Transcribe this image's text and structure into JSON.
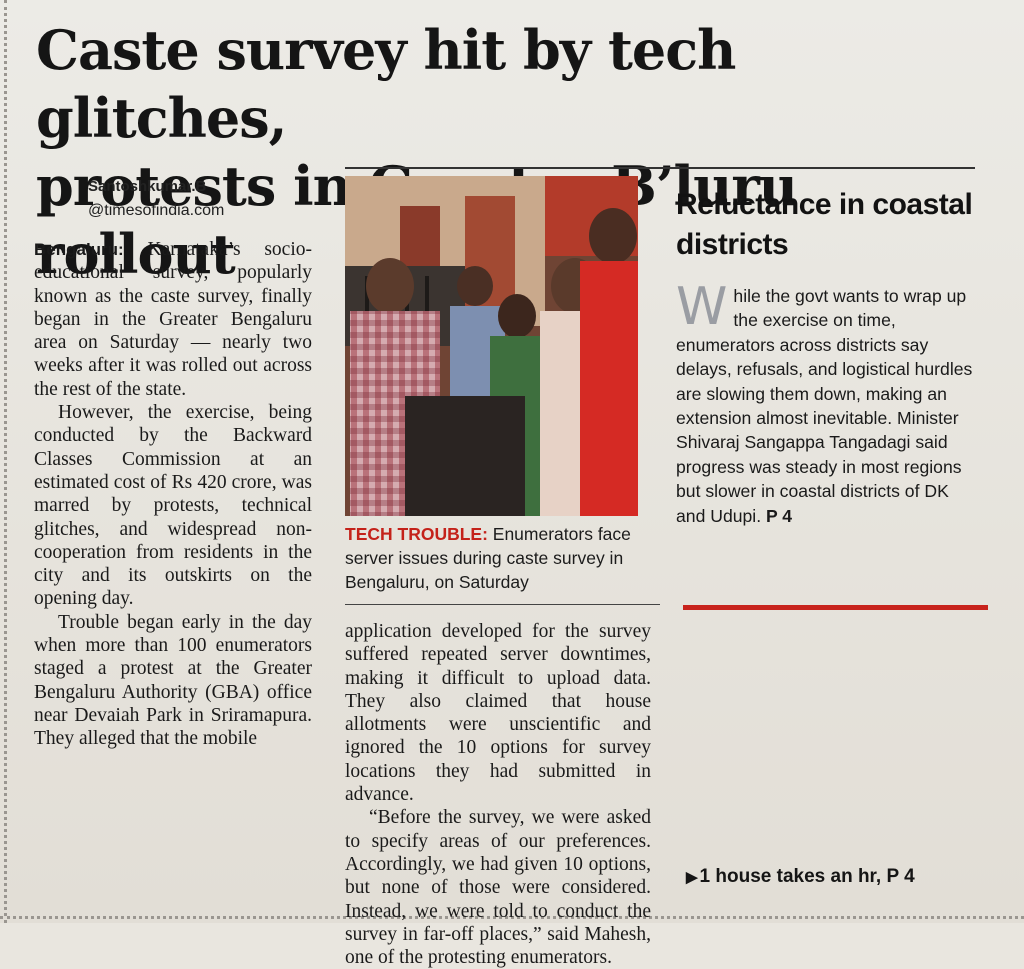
{
  "headline": {
    "line1": "Caste survey hit by tech glitches,",
    "line2": "protests in Greater B’luru rollout"
  },
  "byline": {
    "name": "Santoshkumar.B",
    "email": "@timesofindia.com"
  },
  "article": {
    "dateline": "Bengaluru:",
    "p1": "Karnataka’s socio-educational survey, popularly known as the caste survey, finally began in the Greater Bengaluru area on Saturday — nearly two weeks after it was rolled out across the rest of the state.",
    "p2": "However, the exercise, being conducted by the Backward Classes Commission at an estimated cost of Rs 420 crore, was marred by protests, technical glitches, and widespread non-cooperation from residents in the city and its outskirts on the opening day.",
    "p3": "Trouble began early in the day when more than 100 enumerators staged a protest at the Greater Bengaluru Authority (GBA) office near Devaiah Park in Sriramapura. They alleged that the mobile",
    "p4": "application developed for the survey suffered repeated server downtimes, making it difficult to upload data. They also claimed that house allotments were unscientific and ignored the 10 options for survey locations they had submitted in advance.",
    "p5": "“Before the survey, we were asked to specify areas of our preferences. Accordingly, we had given 10 options, but none of those were considered. Instead, we were told to conduct the survey in far-off places,” said Mahesh, one of the protesting enumerators."
  },
  "photo": {
    "caption_tag": "TECH TROUBLE:",
    "caption_text": "Enumerators face server issues during caste survey in Bengaluru, on Saturday"
  },
  "sidebar": {
    "title": "Reluctance in coastal districts",
    "dropcap": "W",
    "body": "hile the govt wants to wrap up the exercise on time, enumerators across districts say delays, refusals, and logistical hurdles are slowing them down, making an extension almost inevitable. Minister Shivaraj Sangappa Tangadagi said progress was steady in most regions but slower in coastal districts of DK and Udupi.",
    "ref": "P 4"
  },
  "footer": {
    "jump": "1 house takes an hr, P 4"
  }
}
